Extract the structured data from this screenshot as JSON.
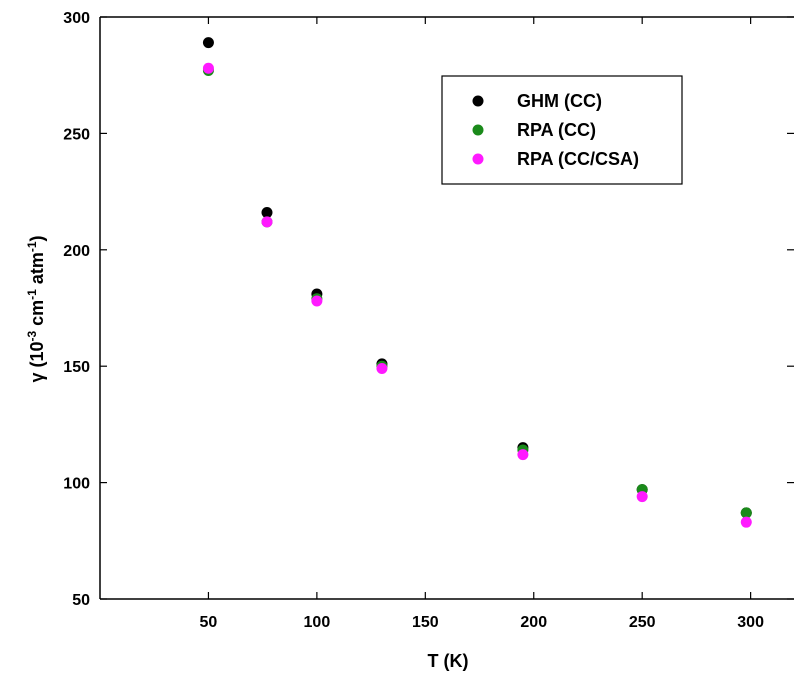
{
  "chart_data": {
    "type": "scatter",
    "xlabel": "T (K)",
    "ylabel": {
      "prefix": "γ (10",
      "exp1": "-3",
      "mid": " cm",
      "exp2": "-1",
      "mid2": " atm",
      "exp3": "-1",
      "suffix": ")"
    },
    "xlim": [
      0,
      320
    ],
    "ylim": [
      50,
      300
    ],
    "xticks": [
      50,
      100,
      150,
      200,
      250,
      300
    ],
    "yticks": [
      50,
      100,
      150,
      200,
      250,
      300
    ],
    "grid": false,
    "legend_position": "top-right",
    "series": [
      {
        "name": "GHM (CC)",
        "color": "#000000",
        "x": [
          50,
          77,
          100,
          130,
          195,
          250,
          298
        ],
        "y": [
          289,
          216,
          181,
          151,
          115,
          97,
          87
        ]
      },
      {
        "name": "RPA  (CC)",
        "color": "#1a8a1a",
        "x": [
          50,
          77,
          100,
          130,
          195,
          250,
          298
        ],
        "y": [
          277,
          212,
          179,
          150,
          114,
          97,
          87
        ]
      },
      {
        "name": "RPA  (CC/CSA)",
        "color": "#ff1aff",
        "x": [
          50,
          77,
          100,
          130,
          195,
          250,
          298
        ],
        "y": [
          278,
          212,
          178,
          149,
          112,
          94,
          83
        ]
      }
    ]
  }
}
